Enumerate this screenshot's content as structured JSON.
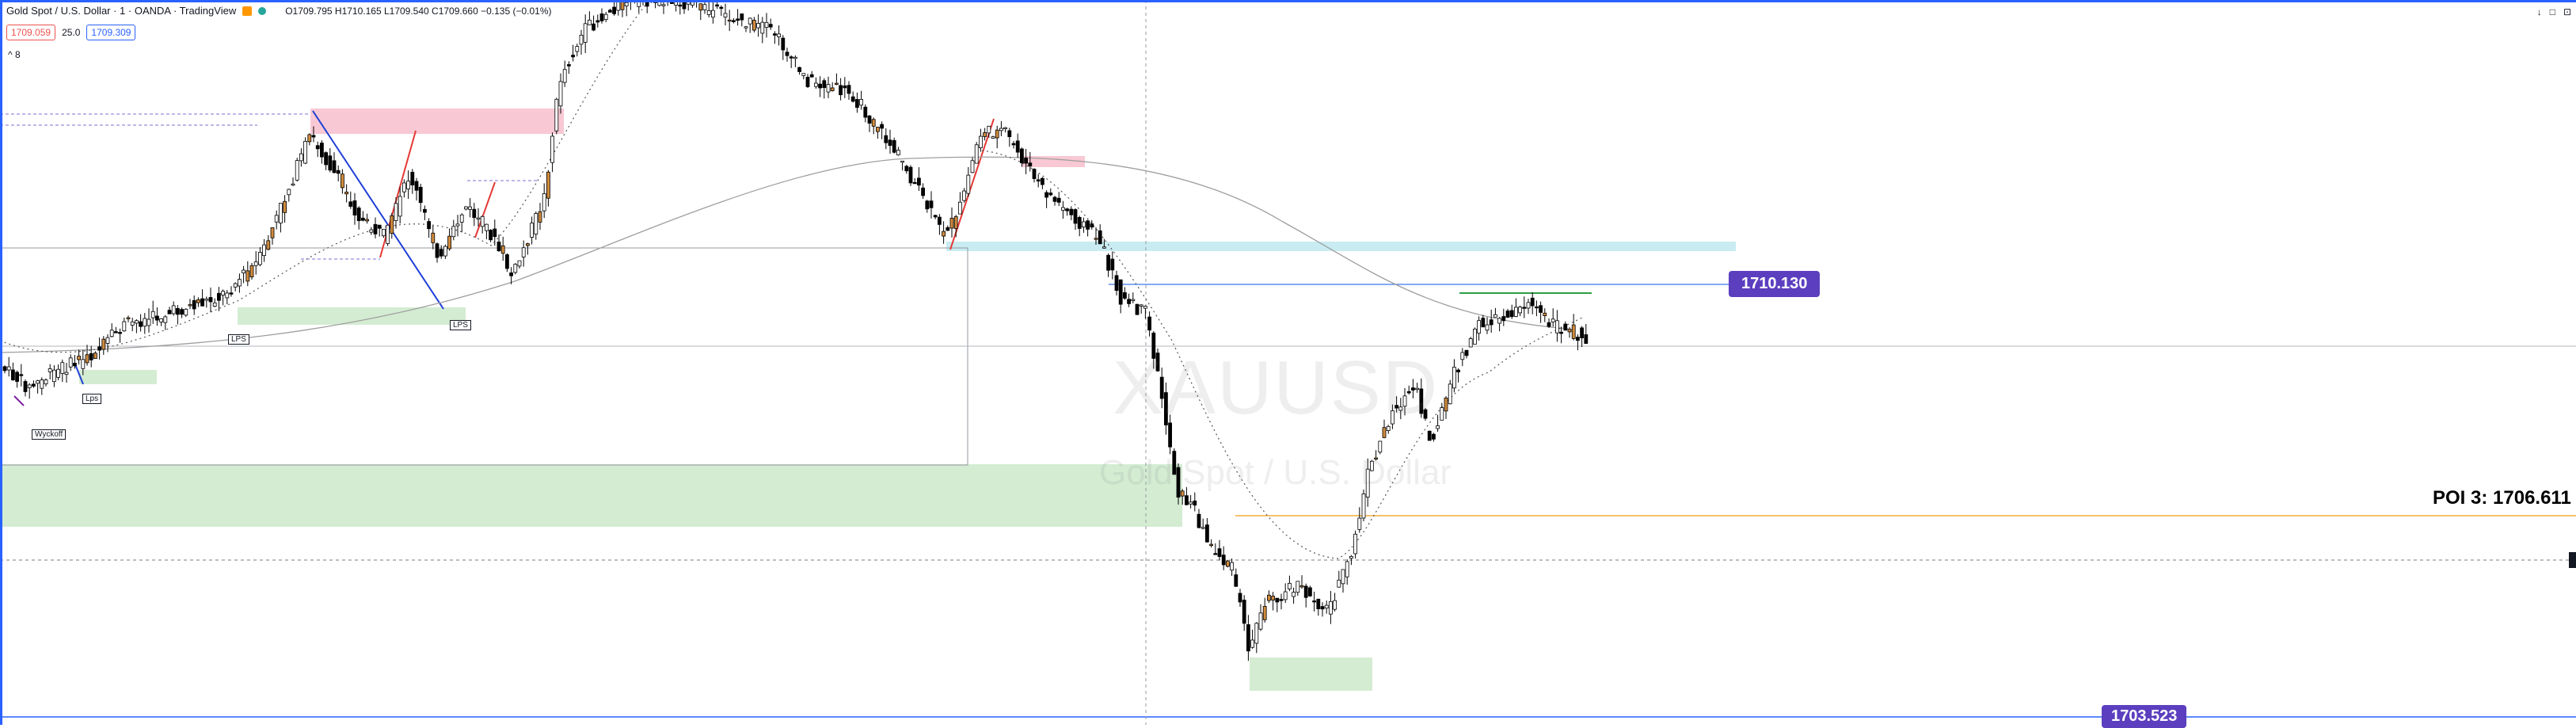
{
  "header": {
    "symbol": "Gold Spot / U.S. Dollar · 1 · OANDA · TradingView",
    "ohlc": "O1709.795 H1710.165 L1709.540 C1709.660 −0.135 (−0.01%)",
    "sell_price": "1709.059",
    "spread": "25.0",
    "buy_price": "1709.309",
    "collapse_label": "^ 8",
    "window_buttons": [
      "↓",
      "□",
      "⊡"
    ]
  },
  "watermark": {
    "symbol": "XAUUSD",
    "description": "Gold Spot / U.S. Dollar"
  },
  "colors": {
    "bull_candle": "#ffffff",
    "bear_candle": "#000000",
    "orange_candle": "#d08a3c",
    "supply_zone": "#f8c8d4",
    "demand_zone": "#d4ecd2",
    "liquidity_zone": "#c8ecf2",
    "price_tag": "#5b3fbf",
    "poi_line": "#f5c16c",
    "frame": "#2962ff"
  },
  "chart_data": {
    "type": "candlestick",
    "symbol": "XAUUSD",
    "price_labels": {
      "level_high": 1710.13,
      "level_low": 1703.523,
      "poi": "POI 3: 1706.611"
    },
    "levels": [
      {
        "label": "1710.130",
        "price": 1710.13
      },
      {
        "label": "POI 3: 1706.611",
        "price": 1706.611
      },
      {
        "label": "1703.523",
        "price": 1703.523
      }
    ],
    "annotations": [
      "LPS",
      "LPS",
      "Lps",
      "Wyckoff"
    ],
    "ohlc_last": {
      "open": 1709.795,
      "high": 1710.165,
      "low": 1709.54,
      "close": 1709.66
    }
  }
}
